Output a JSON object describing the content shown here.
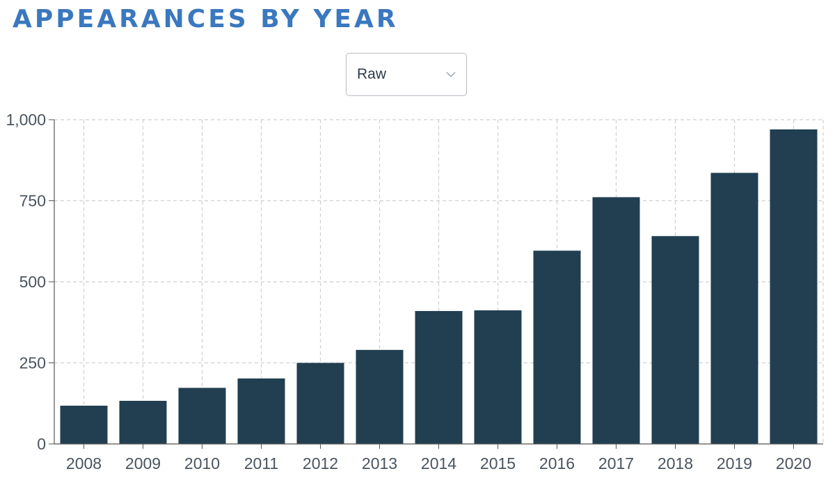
{
  "header": {
    "title": "APPEARANCES BY YEAR"
  },
  "mode_select": {
    "value": "Raw",
    "icon": "chevron-down-icon"
  },
  "colors": {
    "title": "#3a78bf",
    "bar": "#213f51",
    "grid": "#cfcfcf",
    "axis": "#555555"
  },
  "chart_data": {
    "type": "bar",
    "title": "APPEARANCES BY YEAR",
    "xlabel": "",
    "ylabel": "",
    "categories": [
      "2008",
      "2009",
      "2010",
      "2011",
      "2012",
      "2013",
      "2014",
      "2015",
      "2016",
      "2017",
      "2018",
      "2019",
      "2020"
    ],
    "values": [
      118,
      133,
      173,
      202,
      250,
      290,
      410,
      412,
      596,
      761,
      641,
      836,
      970
    ],
    "ylim": [
      0,
      1000
    ],
    "yticks": [
      0,
      250,
      500,
      750,
      1000
    ],
    "ytick_labels": [
      "0",
      "250",
      "500",
      "750",
      "1,000"
    ],
    "grid": true,
    "legend": "none"
  }
}
